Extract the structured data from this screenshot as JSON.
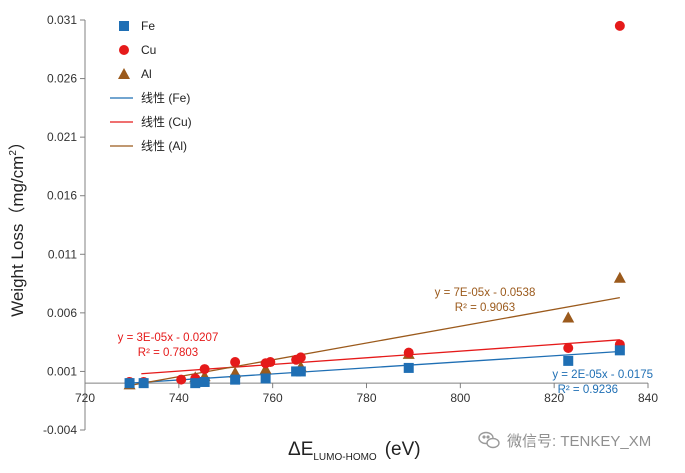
{
  "chart_data": {
    "type": "scatter",
    "xlabel": "ΔE",
    "xlabel_sub": "LUMO-HOMO",
    "xlabel_unit": "(eV)",
    "ylabel": "Weight Loss（mg/cm",
    "ylabel_sup": "2",
    "ylabel_close": "）",
    "xlim": [
      720,
      840
    ],
    "ylim": [
      -0.004,
      0.031
    ],
    "x_ticks": [
      720,
      740,
      760,
      780,
      800,
      820,
      840
    ],
    "y_ticks": [
      -0.004,
      0.001,
      0.006,
      0.011,
      0.016,
      0.021,
      0.026,
      0.031
    ],
    "x_tick_labels": [
      "720",
      "740",
      "760",
      "780",
      "800",
      "820",
      "840"
    ],
    "y_tick_labels": [
      "-0.004",
      "0.001",
      "0.006",
      "0.011",
      "0.016",
      "0.021",
      "0.026",
      "0.031"
    ],
    "grid": false,
    "legend_position": "top-left",
    "series": [
      {
        "name": "Fe",
        "marker": "square",
        "color": "#1f6fb4",
        "points": [
          [
            729.5,
            0.0
          ],
          [
            732.5,
            0.0
          ],
          [
            743.5,
            0.0
          ],
          [
            745.5,
            0.0001
          ],
          [
            752,
            0.0003
          ],
          [
            758.5,
            0.0004
          ],
          [
            765,
            0.001
          ],
          [
            766,
            0.001
          ],
          [
            789,
            0.0013
          ],
          [
            823,
            0.0019
          ],
          [
            834,
            0.0028
          ]
        ]
      },
      {
        "name": "Cu",
        "marker": "circle",
        "color": "#e51a1a",
        "points": [
          [
            729.5,
            0.0001
          ],
          [
            732.5,
            0.0001
          ],
          [
            740.5,
            0.0003
          ],
          [
            743.5,
            0.0004
          ],
          [
            745.5,
            0.0012
          ],
          [
            752,
            0.0018
          ],
          [
            758.5,
            0.0017
          ],
          [
            759.5,
            0.0018
          ],
          [
            765,
            0.002
          ],
          [
            766,
            0.0022
          ],
          [
            789,
            0.0026
          ],
          [
            823,
            0.003
          ],
          [
            834,
            0.0033
          ],
          [
            834,
            0.0305
          ]
        ]
      },
      {
        "name": "Al",
        "marker": "triangle",
        "color": "#9b5a1c",
        "points": [
          [
            729.5,
            -0.0001
          ],
          [
            743.5,
            0.0005
          ],
          [
            745.5,
            0.0006
          ],
          [
            752,
            0.0009
          ],
          [
            758.5,
            0.0012
          ],
          [
            766,
            0.0014
          ],
          [
            789,
            0.0025
          ],
          [
            823,
            0.0056
          ],
          [
            834,
            0.009
          ]
        ]
      }
    ],
    "trendlines": [
      {
        "name": "线性 (Fe)",
        "color": "#1f6fb4",
        "x_range": [
          729.5,
          834
        ],
        "y_range": [
          0.0,
          0.0027
        ],
        "equation": "y = 2E-05x - 0.0175",
        "r2": "R² = 0.9236"
      },
      {
        "name": "线性 (Cu)",
        "color": "#e51a1a",
        "x_range": [
          732,
          834
        ],
        "y_range": [
          0.0008,
          0.0037
        ],
        "equation": "y = 3E-05x - 0.0207",
        "r2": "R² = 0.7803"
      },
      {
        "name": "线性 (Al)",
        "color": "#9b5a1c",
        "x_range": [
          729.5,
          834
        ],
        "y_range": [
          -0.0002,
          0.0073
        ],
        "equation": "y = 7E-05x - 0.0538",
        "r2": "R² = 0.9063"
      }
    ]
  },
  "watermark": {
    "text": "微信号: TENKEY_XM",
    "icon": "wechat-icon"
  }
}
